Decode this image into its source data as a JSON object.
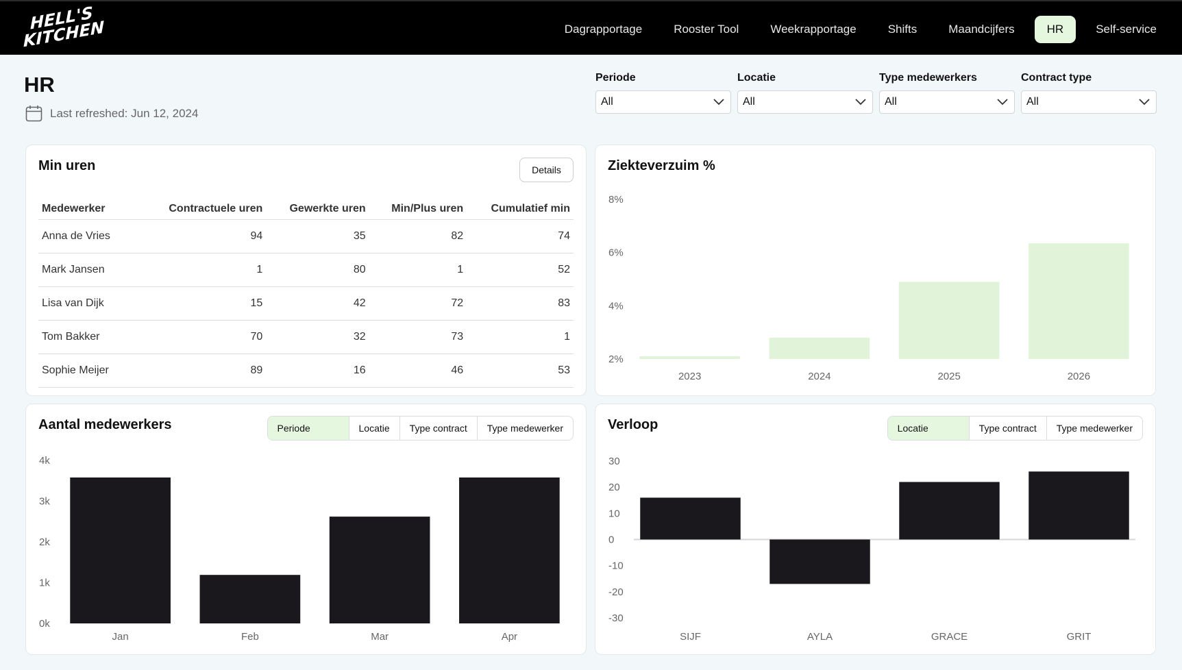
{
  "brand": {
    "line1": "HELL'S",
    "line2": "KITCHEN"
  },
  "nav": {
    "items": [
      {
        "label": "Dagrapportage",
        "active": false
      },
      {
        "label": "Rooster Tool",
        "active": false
      },
      {
        "label": "Weekrapportage",
        "active": false
      },
      {
        "label": "Shifts",
        "active": false
      },
      {
        "label": "Maandcijfers",
        "active": false
      },
      {
        "label": "HR",
        "active": true
      },
      {
        "label": "Self-service",
        "active": false
      }
    ]
  },
  "header": {
    "title": "HR",
    "last_refreshed": "Last refreshed: Jun 12, 2024"
  },
  "filters": [
    {
      "label": "Periode",
      "value": "All"
    },
    {
      "label": "Locatie",
      "value": "All"
    },
    {
      "label": "Type medewerkers",
      "value": "All"
    },
    {
      "label": "Contract type",
      "value": "All"
    }
  ],
  "min_uren": {
    "title": "Min uren",
    "details_label": "Details",
    "columns": [
      "Medewerker",
      "Contractuele uren",
      "Gewerkte uren",
      "Min/Plus uren",
      "Cumulatief min"
    ],
    "rows": [
      [
        "Anna de Vries",
        "94",
        "35",
        "82",
        "74"
      ],
      [
        "Mark Jansen",
        "1",
        "80",
        "1",
        "52"
      ],
      [
        "Lisa van Dijk",
        "15",
        "42",
        "72",
        "83"
      ],
      [
        "Tom Bakker",
        "70",
        "32",
        "73",
        "1"
      ],
      [
        "Sophie Meijer",
        "89",
        "16",
        "46",
        "53"
      ]
    ]
  },
  "ziekteverzuim": {
    "title": "Ziekteverzuim %"
  },
  "aantal": {
    "title": "Aantal medewerkers",
    "segments": [
      {
        "label": "Periode",
        "active": true
      },
      {
        "label": "Locatie",
        "active": false
      },
      {
        "label": "Type contract",
        "active": false
      },
      {
        "label": "Type medewerker",
        "active": false
      }
    ]
  },
  "verloop": {
    "title": "Verloop",
    "segments": [
      {
        "label": "Locatie",
        "active": true
      },
      {
        "label": "Type contract",
        "active": false
      },
      {
        "label": "Type medewerker",
        "active": false
      }
    ]
  },
  "colors": {
    "accent_green": "#e6f7e0",
    "bar_light": "#e1f4da",
    "bar_dark": "#1a181c"
  },
  "chart_data": [
    {
      "id": "ziekteverzuim",
      "type": "bar",
      "title": "Ziekteverzuim %",
      "categories": [
        "2023",
        "2024",
        "2025",
        "2026"
      ],
      "values": [
        2.1,
        2.8,
        4.9,
        6.35
      ],
      "ylim": [
        2,
        8
      ],
      "yticks": [
        "2%",
        "4%",
        "6%",
        "8%"
      ],
      "grid": false
    },
    {
      "id": "aantal",
      "type": "bar",
      "title": "Aantal medewerkers",
      "categories": [
        "Jan",
        "Feb",
        "Mar",
        "Apr"
      ],
      "values": [
        3580,
        1190,
        2620,
        3580
      ],
      "ylim": [
        0,
        4000
      ],
      "yticks": [
        "0k",
        "1k",
        "2k",
        "3k",
        "4k"
      ],
      "grid": false
    },
    {
      "id": "verloop",
      "type": "bar",
      "title": "Verloop",
      "categories": [
        "SIJF",
        "AYLA",
        "GRACE",
        "GRIT"
      ],
      "values": [
        16,
        -17,
        22,
        26
      ],
      "ylim": [
        -30,
        30
      ],
      "yticks": [
        "-30",
        "-20",
        "-10",
        "0",
        "10",
        "20",
        "30"
      ],
      "grid": false
    }
  ]
}
